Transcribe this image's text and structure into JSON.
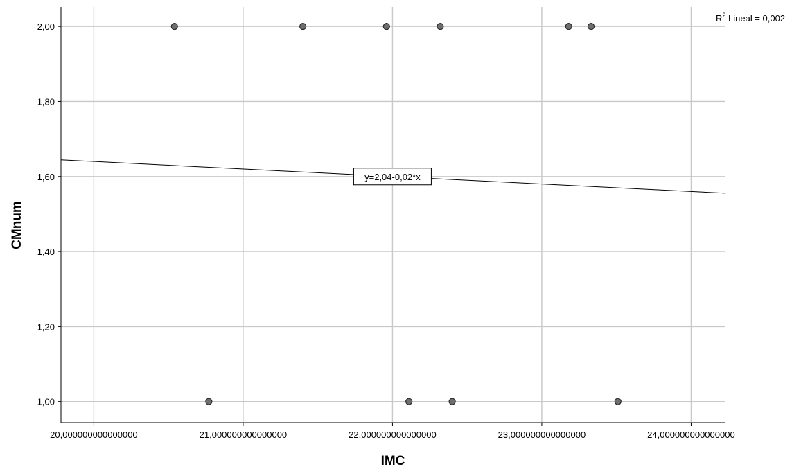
{
  "chart_data": {
    "type": "scatter",
    "xlabel": "IMC",
    "ylabel": "CMnum",
    "xlim": [
      19.78,
      24.23
    ],
    "ylim": [
      0.944,
      2.052
    ],
    "x_ticks": [
      20,
      21,
      22,
      23,
      24
    ],
    "x_tick_labels": [
      "20,000000000000000",
      "21,000000000000000",
      "22,000000000000000",
      "23,000000000000000",
      "24,000000000000000"
    ],
    "y_ticks": [
      1.0,
      1.2,
      1.4,
      1.6,
      1.8,
      2.0
    ],
    "y_tick_labels": [
      "1,00",
      "1,20",
      "1,40",
      "1,60",
      "1,80",
      "2,00"
    ],
    "grid": true,
    "points": [
      {
        "x": 20.54,
        "y": 2.0
      },
      {
        "x": 21.4,
        "y": 2.0
      },
      {
        "x": 21.96,
        "y": 2.0
      },
      {
        "x": 22.32,
        "y": 2.0
      },
      {
        "x": 23.18,
        "y": 2.0
      },
      {
        "x": 23.33,
        "y": 2.0
      },
      {
        "x": 20.77,
        "y": 1.0
      },
      {
        "x": 22.11,
        "y": 1.0
      },
      {
        "x": 22.4,
        "y": 1.0
      },
      {
        "x": 23.51,
        "y": 1.0
      }
    ],
    "fit_line": {
      "intercept": 2.04,
      "slope": -0.02,
      "equation_label": "y=2,04-0,02*x",
      "label_x": 22.0
    },
    "r2_label": {
      "prefix": "R",
      "superscript": "2",
      "text": " Lineal = 0,002"
    },
    "colors": {
      "grid": "#c8c8c8",
      "point_fill": "#6e6e6e",
      "point_stroke": "#2b2b2b",
      "line": "#000000"
    }
  }
}
